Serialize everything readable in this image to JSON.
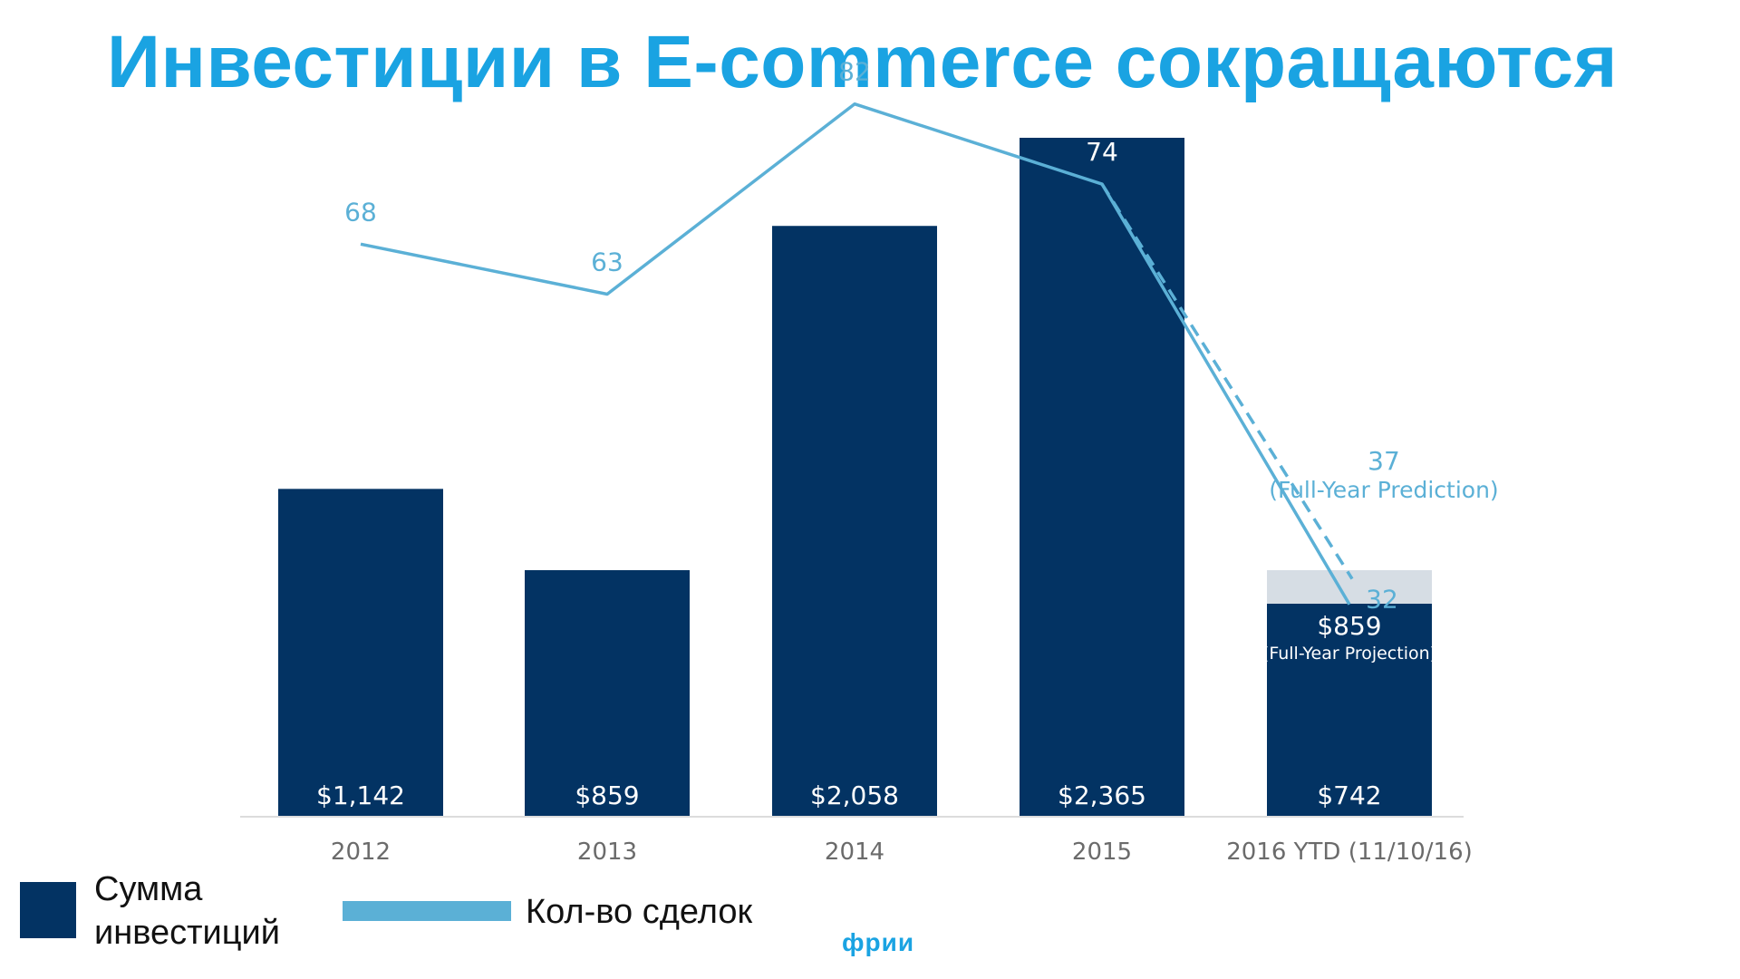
{
  "title": "Инвестиции в E-commerce сокращаются",
  "logo": "фрии",
  "colors": {
    "title": "#1aa3e2",
    "bar": "#033363",
    "bar_projection": "#d6dde4",
    "line": "#5bb0d6",
    "axis_text": "#6b6b6b",
    "bar_text": "#ffffff"
  },
  "legend": {
    "bars_label": "Сумма инвестиций",
    "line_label": "Кол-во сделок"
  },
  "chart_data": {
    "type": "bar",
    "categories": [
      "2012",
      "2013",
      "2014",
      "2015",
      "2016 YTD (11/10/16)"
    ],
    "series": [
      {
        "kind": "bar",
        "values": [
          1142,
          859,
          2058,
          2365,
          742
        ],
        "labels": [
          "$1,142",
          "$859",
          "$2,058",
          "$2,365",
          "$742"
        ]
      },
      {
        "kind": "line",
        "values": [
          68,
          63,
          82,
          74,
          32
        ],
        "labels": [
          "68",
          "63",
          "82",
          "74",
          "32"
        ]
      }
    ],
    "projection": {
      "bar_value": 859,
      "bar_label": "$859",
      "bar_note": "(Full-Year Projection)",
      "line_value": 37,
      "line_label": "37",
      "line_note": "(Full-Year Prediction)"
    },
    "grid": false,
    "legend_position": "bottom-left"
  }
}
